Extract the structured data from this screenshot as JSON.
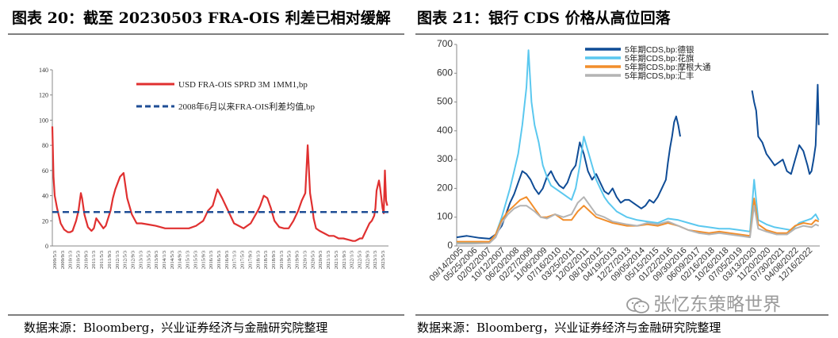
{
  "left_figure": {
    "title": "图表 20：截至 20230503 FRA-OIS 利差已相对缓解",
    "source": "数据来源：Bloomberg，兴业证券经济与金融研究院整理"
  },
  "right_figure": {
    "title": "图表 21：银行 CDS 价格从高位回落",
    "source": "数据来源：Bloomberg，兴业证券经济与金融研究院整理"
  },
  "watermark": "张忆东策略世界",
  "chart_data": [
    {
      "type": "line",
      "title": "",
      "xlabel": "",
      "ylabel": "",
      "ylim": [
        0,
        140
      ],
      "yticks": [
        0,
        20,
        40,
        60,
        80,
        100,
        120,
        140
      ],
      "xlim": [
        2009.25,
        2023.4
      ],
      "x_tick_labels": [
        "2009/5/3",
        "2009/9/3",
        "2010/1/3",
        "2010/5/3",
        "2010/9/3",
        "2011/1/3",
        "2011/5/3",
        "2011/9/3",
        "2012/1/3",
        "2012/5/3",
        "2012/9/3",
        "2013/1/3",
        "2013/5/3",
        "2013/9/3",
        "2014/1/3",
        "2014/5/3",
        "2014/9/3",
        "2015/1/3",
        "2015/5/3",
        "2015/9/3",
        "2016/1/3",
        "2016/5/3",
        "2016/9/3",
        "2017/1/3",
        "2017/5/3",
        "2017/9/3",
        "2018/1/3",
        "2018/5/3",
        "2018/9/3",
        "2019/1/3",
        "2019/5/3",
        "2019/9/3",
        "2020/1/3",
        "2020/5/3",
        "2020/9/3",
        "2021/1/3",
        "2021/5/3",
        "2021/9/3",
        "2022/1/3",
        "2022/5/3",
        "2022/9/3",
        "2023/1/3",
        "2023/5/3"
      ],
      "grid": false,
      "legend_position": "top-right",
      "series": [
        {
          "name": "USD FRA-OIS SPRD 3M 1MM1,bp",
          "color": "#e03030",
          "style": "solid",
          "x": [
            2009.25,
            2009.3,
            2009.35,
            2009.45,
            2009.6,
            2009.75,
            2009.9,
            2010.0,
            2010.1,
            2010.25,
            2010.35,
            2010.45,
            2010.5,
            2010.6,
            2010.75,
            2010.9,
            2011.0,
            2011.1,
            2011.25,
            2011.4,
            2011.5,
            2011.6,
            2011.7,
            2011.8,
            2011.9,
            2012.0,
            2012.1,
            2012.25,
            2012.4,
            2012.6,
            2012.8,
            2013.0,
            2013.3,
            2013.6,
            2014.0,
            2014.3,
            2014.6,
            2015.0,
            2015.3,
            2015.6,
            2015.8,
            2016.0,
            2016.2,
            2016.4,
            2016.6,
            2016.75,
            2016.9,
            2017.1,
            2017.3,
            2017.6,
            2017.9,
            2018.0,
            2018.15,
            2018.3,
            2018.45,
            2018.6,
            2018.8,
            2019.0,
            2019.2,
            2019.4,
            2019.6,
            2019.75,
            2019.9,
            2020.0,
            2020.1,
            2020.2,
            2020.25,
            2020.35,
            2020.5,
            2020.7,
            2020.9,
            2021.1,
            2021.3,
            2021.5,
            2021.7,
            2021.9,
            2022.0,
            2022.1,
            2022.2,
            2022.3,
            2022.4,
            2022.5,
            2022.6,
            2022.7,
            2022.8,
            2022.85,
            2022.9,
            2023.0,
            2023.05,
            2023.1,
            2023.15,
            2023.2,
            2023.25,
            2023.3,
            2023.35
          ],
          "y": [
            95,
            55,
            40,
            30,
            18,
            13,
            11,
            11,
            12,
            20,
            28,
            42,
            38,
            25,
            15,
            12,
            14,
            22,
            18,
            14,
            16,
            22,
            28,
            38,
            45,
            50,
            55,
            58,
            38,
            25,
            18,
            18,
            17,
            16,
            14,
            14,
            14,
            14,
            16,
            20,
            28,
            32,
            45,
            38,
            30,
            24,
            18,
            16,
            14,
            18,
            28,
            32,
            40,
            38,
            30,
            20,
            15,
            14,
            14,
            20,
            28,
            36,
            42,
            80,
            42,
            30,
            22,
            14,
            12,
            10,
            8,
            8,
            6,
            6,
            5,
            4,
            4,
            5,
            6,
            6,
            10,
            14,
            18,
            20,
            24,
            30,
            44,
            52,
            46,
            38,
            30,
            26,
            60,
            36,
            32
          ]
        },
        {
          "name": "2008年6月以来FRA-OIS利差均值,bp",
          "color": "#1f4e96",
          "style": "dashed",
          "x": [
            2009.25,
            2023.4
          ],
          "y": [
            27,
            27
          ]
        }
      ]
    },
    {
      "type": "line",
      "title": "",
      "xlabel": "",
      "ylabel": "",
      "ylim": [
        0,
        700
      ],
      "yticks": [
        0,
        100,
        200,
        300,
        400,
        500,
        600,
        700
      ],
      "xlim": [
        2005.7,
        2023.4
      ],
      "x_tick_labels": [
        "09/14/2005",
        "05/25/2006",
        "02/02/2007",
        "10/12/2007",
        "06/20/2008",
        "02/27/2009",
        "11/06/2009",
        "07/16/2010",
        "03/25/2011",
        "12/02/2011",
        "08/10/2012",
        "04/19/2013",
        "12/27/2013",
        "09/05/2014",
        "05/15/2015",
        "01/22/2016",
        "09/30/2016",
        "06/09/2017",
        "02/16/2018",
        "10/26/2018",
        "07/05/2019",
        "03/13/2020",
        "11/20/2020",
        "07/30/2021",
        "04/08/2022",
        "12/16/2022"
      ],
      "grid": false,
      "legend_position": "top-right",
      "series": [
        {
          "name": "5年期CDS,bp:德银",
          "color": "#0f4c96",
          "x": [
            2005.7,
            2006.2,
            2006.8,
            2007.3,
            2007.6,
            2007.9,
            2008.1,
            2008.3,
            2008.5,
            2008.7,
            2008.9,
            2009.1,
            2009.3,
            2009.5,
            2009.7,
            2009.9,
            2010.1,
            2010.3,
            2010.5,
            2010.7,
            2010.9,
            2011.1,
            2011.3,
            2011.5,
            2011.7,
            2011.9,
            2012.1,
            2012.3,
            2012.5,
            2012.7,
            2012.9,
            2013.1,
            2013.3,
            2013.5,
            2013.7,
            2013.9,
            2014.1,
            2014.3,
            2014.5,
            2014.7,
            2014.9,
            2015.1,
            2015.3,
            2015.5,
            2015.7,
            2015.9,
            2016.0,
            2016.1,
            2016.2,
            2016.3,
            2016.4,
            2016.5,
            2016.6,
            2016.7,
            2016.9,
            2017.1,
            2017.3,
            2017.5,
            2017.7,
            2017.9,
            2018.1,
            2018.3,
            2018.5,
            2018.7,
            2018.9,
            2019.1,
            2019.3,
            2019.5,
            2019.7,
            2019.9,
            2020.1,
            2020.2,
            2020.3,
            2020.4,
            2020.6,
            2020.8,
            2021.0,
            2021.2,
            2021.4,
            2021.6,
            2021.8,
            2022.0,
            2022.2,
            2022.4,
            2022.6,
            2022.8,
            2022.9,
            2023.0,
            2023.1,
            2023.2,
            2023.3,
            2023.35
          ],
          "y": [
            30,
            35,
            28,
            25,
            40,
            70,
            110,
            150,
            180,
            220,
            260,
            250,
            230,
            200,
            180,
            200,
            240,
            260,
            230,
            210,
            200,
            220,
            260,
            280,
            360,
            320,
            260,
            230,
            250,
            220,
            190,
            180,
            200,
            170,
            150,
            160,
            160,
            150,
            140,
            130,
            140,
            160,
            150,
            170,
            200,
            230,
            290,
            340,
            380,
            430,
            450,
            420,
            380,
            null,
            null,
            null,
            null,
            null,
            null,
            null,
            null,
            null,
            null,
            null,
            null,
            null,
            null,
            null,
            null,
            null,
            540,
            500,
            470,
            380,
            360,
            320,
            300,
            280,
            290,
            300,
            260,
            250,
            300,
            350,
            330,
            280,
            250,
            260,
            300,
            350,
            560,
            420
          ]
        },
        {
          "name": "5年期CDS,bp:花旗",
          "color": "#5bc8ef",
          "x": [
            2005.7,
            2006.2,
            2006.8,
            2007.3,
            2007.6,
            2007.9,
            2008.1,
            2008.3,
            2008.5,
            2008.7,
            2008.9,
            2009.1,
            2009.2,
            2009.35,
            2009.5,
            2009.7,
            2009.9,
            2010.1,
            2010.3,
            2010.5,
            2010.7,
            2010.9,
            2011.1,
            2011.3,
            2011.5,
            2011.7,
            2011.9,
            2012.1,
            2012.3,
            2012.5,
            2012.7,
            2012.9,
            2013.1,
            2013.5,
            2014.0,
            2014.5,
            2015.0,
            2015.5,
            2016.0,
            2016.5,
            2017.0,
            2017.5,
            2018.0,
            2018.5,
            2019.0,
            2019.5,
            2020.0,
            2020.2,
            2020.4,
            2020.8,
            2021.2,
            2021.6,
            2022.0,
            2022.4,
            2022.8,
            2023.0,
            2023.2,
            2023.35
          ],
          "y": [
            10,
            12,
            10,
            15,
            40,
            100,
            150,
            200,
            260,
            320,
            420,
            550,
            680,
            500,
            420,
            360,
            280,
            240,
            210,
            200,
            190,
            180,
            170,
            160,
            200,
            280,
            380,
            330,
            280,
            230,
            200,
            170,
            150,
            120,
            100,
            90,
            85,
            80,
            95,
            90,
            80,
            70,
            65,
            60,
            60,
            55,
            50,
            230,
            90,
            75,
            65,
            60,
            55,
            80,
            90,
            95,
            110,
            90
          ]
        },
        {
          "name": "5年期CDS,bp:摩根大通",
          "color": "#f28e2b",
          "x": [
            2005.7,
            2006.5,
            2007.3,
            2007.6,
            2007.9,
            2008.2,
            2008.5,
            2008.8,
            2009.1,
            2009.3,
            2009.5,
            2009.8,
            2010.1,
            2010.5,
            2010.9,
            2011.3,
            2011.6,
            2011.9,
            2012.2,
            2012.5,
            2012.9,
            2013.3,
            2014.0,
            2014.5,
            2015.0,
            2015.5,
            2016.0,
            2016.5,
            2017.0,
            2017.5,
            2018.0,
            2018.5,
            2019.0,
            2019.5,
            2020.0,
            2020.2,
            2020.4,
            2020.8,
            2021.3,
            2021.8,
            2022.2,
            2022.6,
            2023.0,
            2023.2,
            2023.35
          ],
          "y": [
            15,
            15,
            15,
            40,
            90,
            120,
            140,
            160,
            170,
            150,
            130,
            100,
            100,
            110,
            90,
            90,
            120,
            140,
            120,
            100,
            90,
            80,
            70,
            70,
            75,
            70,
            80,
            70,
            55,
            50,
            45,
            50,
            45,
            40,
            35,
            165,
            75,
            55,
            45,
            45,
            70,
            80,
            75,
            90,
            85
          ]
        },
        {
          "name": "5年期CDS,bp:汇丰",
          "color": "#b4b4b4",
          "x": [
            2005.7,
            2006.5,
            2007.3,
            2007.6,
            2007.9,
            2008.2,
            2008.5,
            2008.8,
            2009.1,
            2009.3,
            2009.5,
            2009.8,
            2010.1,
            2010.5,
            2010.9,
            2011.3,
            2011.6,
            2011.9,
            2012.2,
            2012.5,
            2012.9,
            2013.3,
            2014.0,
            2014.5,
            2015.0,
            2015.5,
            2016.0,
            2016.5,
            2017.0,
            2017.5,
            2018.0,
            2018.5,
            2019.0,
            2019.5,
            2020.0,
            2020.2,
            2020.4,
            2020.8,
            2021.3,
            2021.8,
            2022.2,
            2022.6,
            2023.0,
            2023.2,
            2023.35
          ],
          "y": [
            8,
            8,
            10,
            30,
            80,
            110,
            130,
            140,
            140,
            130,
            120,
            100,
            95,
            110,
            100,
            110,
            150,
            170,
            140,
            110,
            100,
            85,
            75,
            70,
            80,
            75,
            85,
            70,
            55,
            45,
            40,
            45,
            40,
            35,
            30,
            140,
            60,
            50,
            40,
            40,
            60,
            70,
            65,
            75,
            70
          ]
        }
      ]
    }
  ]
}
